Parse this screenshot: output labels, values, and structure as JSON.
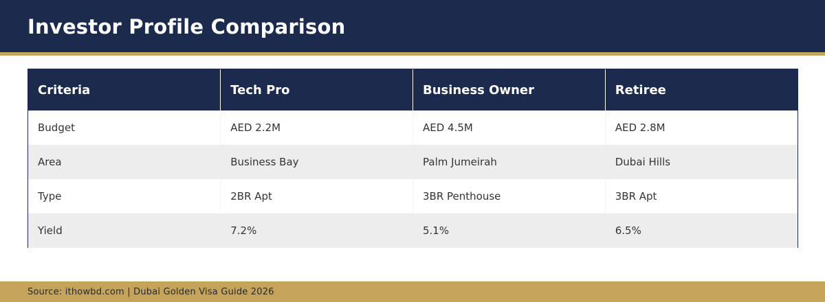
{
  "header": {
    "title": "Investor Profile Comparison"
  },
  "table": {
    "columns": [
      "Criteria",
      "Tech Pro",
      "Business Owner",
      "Retiree"
    ],
    "rows": [
      [
        "Budget",
        "AED 2.2M",
        "AED 4.5M",
        "AED 2.8M"
      ],
      [
        "Area",
        "Business Bay",
        "Palm Jumeirah",
        "Dubai Hills"
      ],
      [
        "Type",
        "2BR Apt",
        "3BR Penthouse",
        "3BR Apt"
      ],
      [
        "Yield",
        "7.2%",
        "5.1%",
        "6.5%"
      ]
    ]
  },
  "footer": {
    "source": "Source: ithowbd.com | Dubai Golden Visa Guide 2026"
  },
  "colors": {
    "navy": "#1c2a4d",
    "gold": "#c4a35a",
    "stripe": "#ededed"
  }
}
